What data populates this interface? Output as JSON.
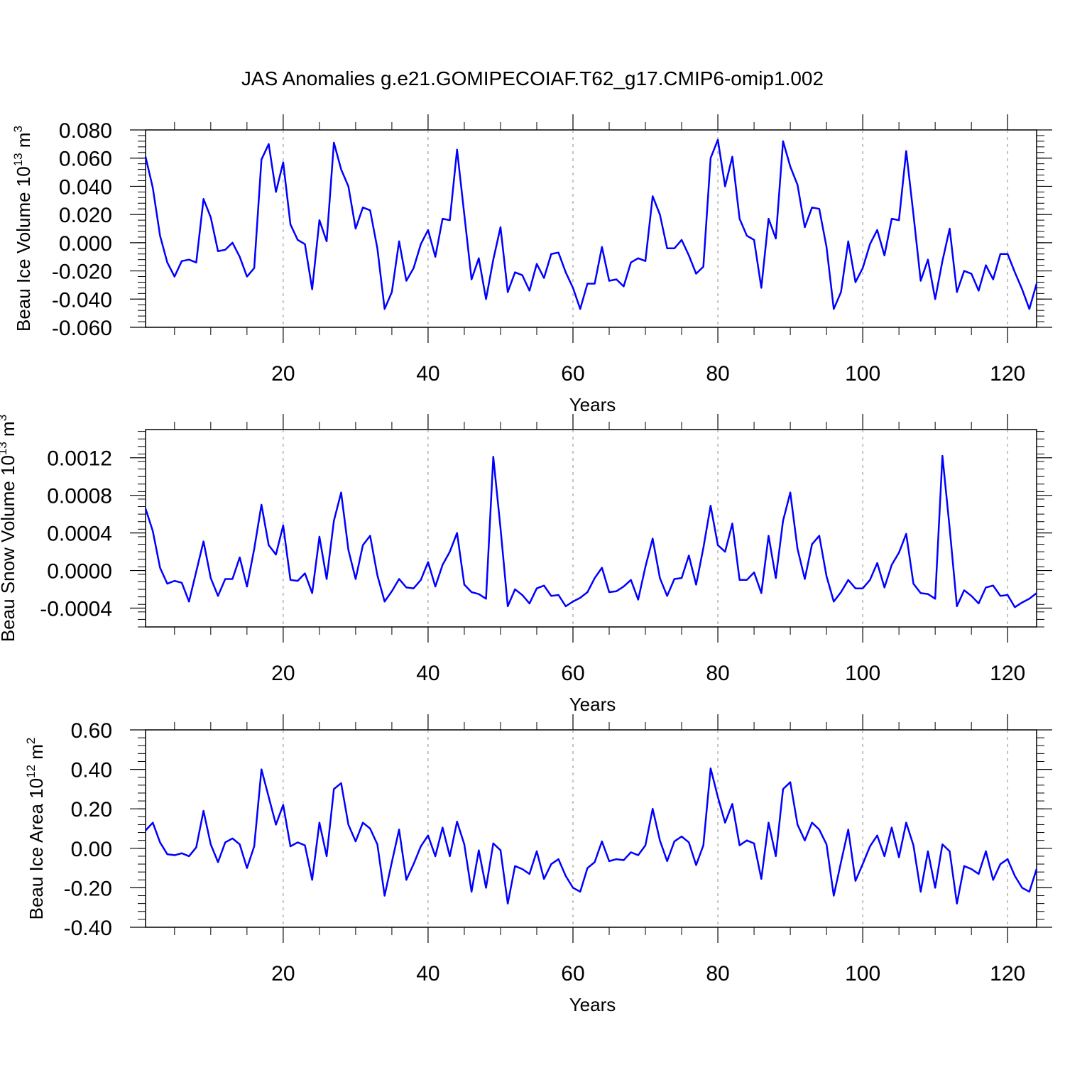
{
  "title": "JAS Anomalies g.e21.GOMIPECOIAF.T62_g17.CMIP6-omip1.002",
  "line_color": "#0000ff",
  "grid_color": "#888888",
  "chart_data": [
    {
      "type": "line",
      "ylabel": "Beau Ice Volume 10",
      "ylabel_sup": "13",
      "ylabel_unit": " m",
      "ylabel_unit_sup": "3",
      "xlabel": "Years",
      "xlim": [
        1,
        124
      ],
      "ylim": [
        -0.06,
        0.08
      ],
      "x_ticks": [
        20,
        40,
        60,
        80,
        100,
        120
      ],
      "x_tick_labels": [
        "20",
        "40",
        "60",
        "80",
        "100",
        "120"
      ],
      "y_ticks": [
        -0.06,
        -0.04,
        -0.02,
        0.0,
        0.02,
        0.04,
        0.06,
        0.08
      ],
      "y_tick_labels": [
        "-0.060",
        "-0.040",
        "-0.020",
        "0.000",
        "0.020",
        "0.040",
        "0.060",
        "0.080"
      ],
      "grid": "vertical dashed at x ticks",
      "series": [
        {
          "values": [
            0.061,
            0.039,
            0.005,
            -0.014,
            -0.024,
            -0.013,
            -0.012,
            -0.014,
            0.031,
            0.018,
            -0.006,
            -0.005,
            0.0,
            -0.01,
            -0.024,
            -0.018,
            0.059,
            0.07,
            0.036,
            0.057,
            0.013,
            0.002,
            -0.001,
            -0.033,
            0.016,
            0.001,
            0.071,
            0.052,
            0.04,
            0.01,
            0.025,
            0.023,
            -0.004,
            -0.047,
            -0.035,
            0.001,
            -0.027,
            -0.018,
            -0.001,
            0.009,
            -0.01,
            0.017,
            0.016,
            0.066,
            0.02,
            -0.026,
            -0.011,
            -0.04,
            -0.012,
            0.011,
            -0.035,
            -0.021,
            -0.023,
            -0.034,
            -0.015,
            -0.025,
            -0.008,
            -0.007,
            -0.021,
            -0.032,
            -0.047,
            -0.029,
            -0.029,
            -0.003,
            -0.027,
            -0.026,
            -0.031,
            -0.014,
            -0.011,
            -0.013,
            0.033,
            0.02,
            -0.004,
            -0.004,
            0.002,
            -0.009,
            -0.022,
            -0.017,
            0.06,
            0.073,
            0.04,
            0.061,
            0.017,
            0.005,
            0.002,
            -0.032,
            0.017,
            0.003,
            0.072,
            0.054,
            0.041,
            0.011,
            0.025,
            0.024,
            -0.003,
            -0.047,
            -0.035,
            0.001,
            -0.028,
            -0.018,
            -0.001,
            0.009,
            -0.009,
            0.017,
            0.016,
            0.065,
            0.02,
            -0.027,
            -0.012,
            -0.04,
            -0.013,
            0.01,
            -0.035,
            -0.02,
            -0.022,
            -0.034,
            -0.016,
            -0.026,
            -0.008,
            -0.008,
            -0.021,
            -0.033,
            -0.047,
            -0.029
          ]
        }
      ]
    },
    {
      "type": "line",
      "ylabel": "Beau Snow Volume 10",
      "ylabel_sup": "13",
      "ylabel_unit": " m",
      "ylabel_unit_sup": "3",
      "xlabel": "Years",
      "xlim": [
        1,
        124
      ],
      "ylim": [
        -0.0006,
        0.0015
      ],
      "x_ticks": [
        20,
        40,
        60,
        80,
        100,
        120
      ],
      "x_tick_labels": [
        "20",
        "40",
        "60",
        "80",
        "100",
        "120"
      ],
      "y_ticks": [
        -0.0004,
        0.0,
        0.0004,
        0.0008,
        0.0012
      ],
      "y_tick_labels": [
        "-0.0004",
        "0.0000",
        "0.0004",
        "0.0008",
        "0.0012"
      ],
      "grid": "vertical dashed at x ticks",
      "series": [
        {
          "values": [
            0.00066,
            0.00042,
            3e-05,
            -0.00014,
            -0.00011,
            -0.00013,
            -0.00033,
            -1e-05,
            0.00031,
            -8e-05,
            -0.00027,
            -9e-05,
            -9e-05,
            0.00014,
            -0.00017,
            0.00023,
            0.0007,
            0.00027,
            0.00017,
            0.00048,
            -0.0001,
            -0.00011,
            -3e-05,
            -0.00024,
            0.00036,
            -9e-05,
            0.00053,
            0.00083,
            0.00022,
            -9e-05,
            0.00027,
            0.00037,
            -5e-05,
            -0.00033,
            -0.00022,
            -9e-05,
            -0.00018,
            -0.00019,
            -0.0001,
            9e-05,
            -0.00017,
            6e-05,
            0.0002,
            0.0004,
            -0.00015,
            -0.00023,
            -0.00025,
            -0.0003,
            0.00121,
            0.00045,
            -0.00038,
            -0.0002,
            -0.00026,
            -0.00035,
            -0.00019,
            -0.00016,
            -0.00027,
            -0.00026,
            -0.00038,
            -0.00033,
            -0.00029,
            -0.00023,
            -8e-05,
            3e-05,
            -0.00023,
            -0.00022,
            -0.00017,
            -0.0001,
            -0.00031,
            4e-05,
            0.00034,
            -8e-05,
            -0.00027,
            -9e-05,
            -8e-05,
            0.00016,
            -0.00015,
            0.00024,
            0.00069,
            0.00027,
            0.0002,
            0.0005,
            -0.0001,
            -0.0001,
            -2e-05,
            -0.00024,
            0.00037,
            -8e-05,
            0.00053,
            0.00083,
            0.00023,
            -9e-05,
            0.00028,
            0.00037,
            -6e-05,
            -0.00033,
            -0.00023,
            -0.0001,
            -0.00019,
            -0.00019,
            -0.0001,
            8e-05,
            -0.00018,
            6e-05,
            0.00019,
            0.00039,
            -0.00014,
            -0.00024,
            -0.00025,
            -0.0003,
            0.00122,
            0.00045,
            -0.00038,
            -0.00021,
            -0.00027,
            -0.00035,
            -0.00018,
            -0.00016,
            -0.00027,
            -0.00026,
            -0.00039,
            -0.00034,
            -0.0003,
            -0.00024
          ]
        }
      ]
    },
    {
      "type": "line",
      "ylabel": "Beau Ice Area 10",
      "ylabel_sup": "12",
      "ylabel_unit": " m",
      "ylabel_unit_sup": "2",
      "xlabel": "Years",
      "xlim": [
        1,
        124
      ],
      "ylim": [
        -0.4,
        0.6
      ],
      "x_ticks": [
        20,
        40,
        60,
        80,
        100,
        120
      ],
      "x_tick_labels": [
        "20",
        "40",
        "60",
        "80",
        "100",
        "120"
      ],
      "y_ticks": [
        -0.4,
        -0.2,
        0.0,
        0.2,
        0.4,
        0.6
      ],
      "y_tick_labels": [
        "-0.40",
        "-0.20",
        "0.00",
        "0.20",
        "0.40",
        "0.60"
      ],
      "grid": "vertical dashed at x ticks",
      "series": [
        {
          "values": [
            0.09,
            0.13,
            0.03,
            -0.03,
            -0.035,
            -0.025,
            -0.04,
            0.005,
            0.19,
            0.02,
            -0.07,
            0.03,
            0.05,
            0.02,
            -0.1,
            0.01,
            0.4,
            0.26,
            0.12,
            0.22,
            0.01,
            0.03,
            0.015,
            -0.16,
            0.13,
            -0.04,
            0.3,
            0.33,
            0.12,
            0.035,
            0.13,
            0.1,
            0.02,
            -0.24,
            -0.07,
            0.095,
            -0.16,
            -0.08,
            0.01,
            0.065,
            -0.04,
            0.105,
            -0.04,
            0.135,
            0.02,
            -0.22,
            -0.01,
            -0.2,
            0.025,
            -0.01,
            -0.28,
            -0.09,
            -0.105,
            -0.13,
            -0.015,
            -0.155,
            -0.08,
            -0.055,
            -0.14,
            -0.2,
            -0.22,
            -0.1,
            -0.07,
            0.035,
            -0.065,
            -0.055,
            -0.06,
            -0.02,
            -0.035,
            0.015,
            0.2,
            0.04,
            -0.065,
            0.035,
            0.06,
            0.03,
            -0.085,
            0.015,
            0.405,
            0.26,
            0.13,
            0.225,
            0.015,
            0.04,
            0.025,
            -0.155,
            0.13,
            -0.04,
            0.3,
            0.335,
            0.12,
            0.04,
            0.13,
            0.095,
            0.02,
            -0.24,
            -0.07,
            0.095,
            -0.165,
            -0.08,
            0.01,
            0.065,
            -0.04,
            0.105,
            -0.045,
            0.13,
            0.015,
            -0.22,
            -0.015,
            -0.2,
            0.02,
            -0.015,
            -0.28,
            -0.09,
            -0.105,
            -0.13,
            -0.015,
            -0.16,
            -0.08,
            -0.055,
            -0.14,
            -0.2,
            -0.22,
            -0.105
          ]
        }
      ]
    }
  ]
}
